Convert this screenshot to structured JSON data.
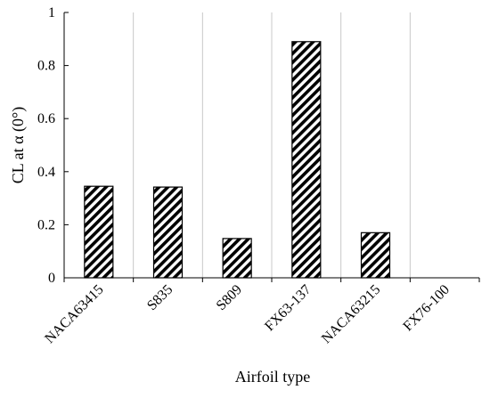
{
  "chart_data": {
    "type": "bar",
    "categories": [
      "NACA63415",
      "S835",
      "S809",
      "FX63-137",
      "NACA63215",
      "FX76-100"
    ],
    "values": [
      0.345,
      0.342,
      0.148,
      0.89,
      0.17,
      0
    ],
    "xlabel": "Airfoil type",
    "ylabel": "CL at α (0°)",
    "ylim": [
      0,
      1
    ],
    "yticks": [
      0,
      0.2,
      0.4,
      0.6,
      0.8,
      1
    ],
    "ytick_labels": [
      "0",
      "0.2",
      "0.4",
      "0.6",
      "0.8",
      "1"
    ],
    "grid": "vertical lines between categories",
    "legend": "none",
    "bar_fill": "diagonal hatch",
    "colors": {
      "bar_stroke": "#000000",
      "hatch": "#000000",
      "grid": "#c8c8c8",
      "axis": "#000000"
    }
  }
}
